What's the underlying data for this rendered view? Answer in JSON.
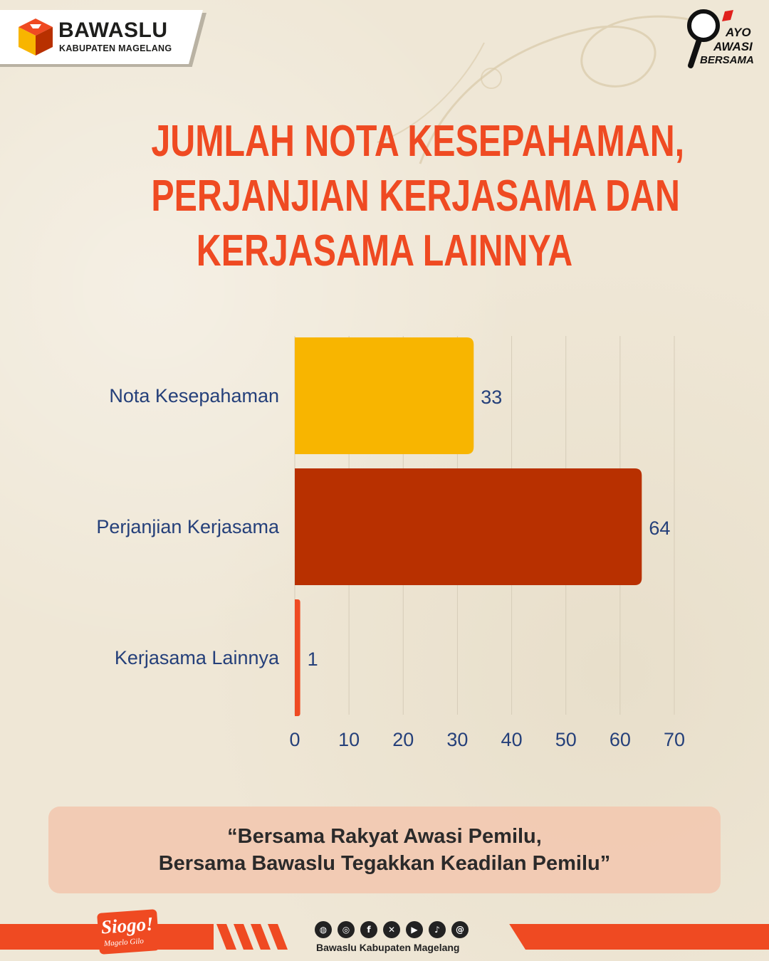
{
  "header": {
    "org_name": "BAWASLU",
    "org_sub": "KABUPATEN MAGELANG",
    "badge": {
      "line1": "AYO",
      "line2": "AWASI",
      "line3": "BERSAMA"
    }
  },
  "title_lines": [
    "JUMLAH NOTA KESEPAHAMAN,",
    "PERJANJIAN KERJASAMA DAN",
    "KERJASAMA LAINNYA"
  ],
  "chart_data": {
    "type": "bar",
    "orientation": "horizontal",
    "categories": [
      "Nota Kesepahaman",
      "Perjanjian Kerjasama",
      "Kerjasama Lainnya"
    ],
    "values": [
      33,
      64,
      1
    ],
    "colors": [
      "#f8b500",
      "#b83000",
      "#ef4a22"
    ],
    "xlim": [
      0,
      70
    ],
    "xticks": [
      0,
      10,
      20,
      30,
      40,
      50,
      60,
      70
    ],
    "grid": true,
    "legend": "none"
  },
  "quote": {
    "line1": "“Bersama Rakyat Awasi Pemilu,",
    "line2": "Bersama Bawaslu Tegakkan Keadilan Pemilu”"
  },
  "footer": {
    "brand": "Siogo!",
    "brand_sub": "Magelo Gilo",
    "social_icons": [
      "globe-icon",
      "instagram-icon",
      "facebook-icon",
      "x-icon",
      "youtube-icon",
      "tiktok-icon",
      "threads-icon"
    ],
    "social_label": "Bawaslu Kabupaten Magelang"
  }
}
